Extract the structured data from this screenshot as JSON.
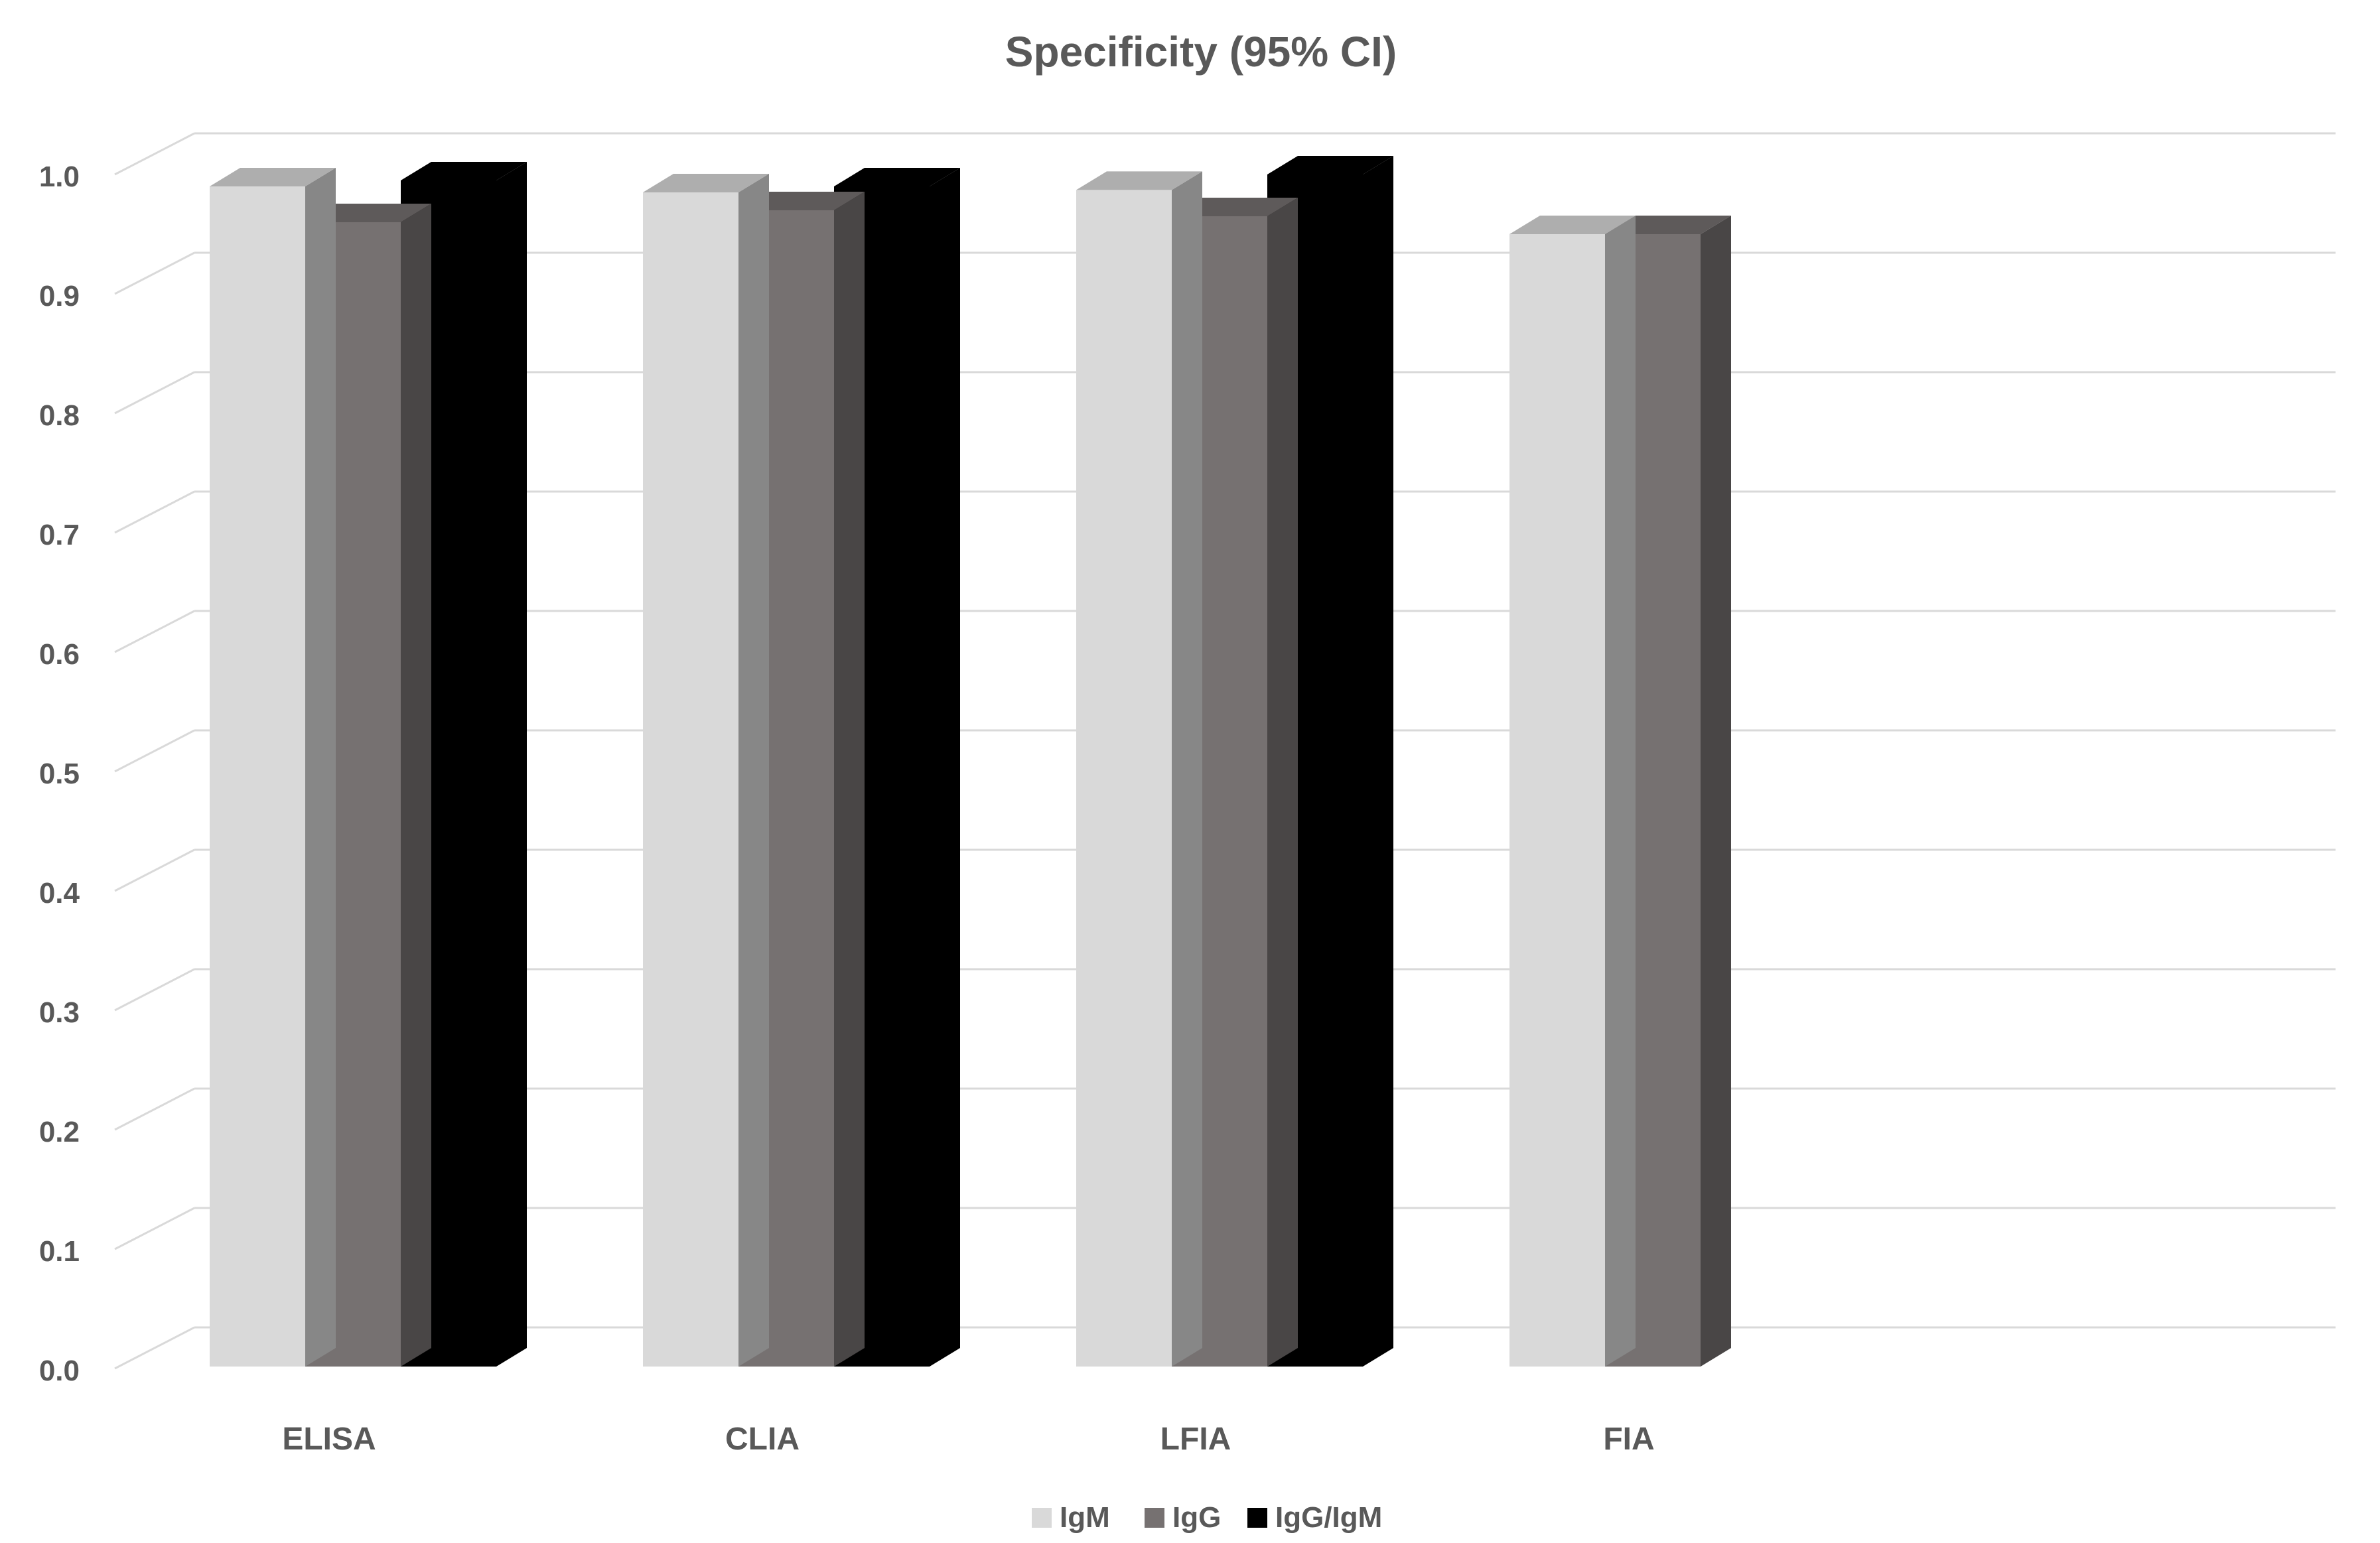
{
  "chart_data": {
    "type": "bar",
    "title": "Specificity (95% CI)",
    "xlabel": "",
    "ylabel": "",
    "ylim": [
      0,
      1.0
    ],
    "yticks": [
      "0.0",
      "0.1",
      "0.2",
      "0.3",
      "0.4",
      "0.5",
      "0.6",
      "0.7",
      "0.8",
      "0.9",
      "1.0"
    ],
    "grid": true,
    "legend_position": "bottom",
    "three_d": true,
    "categories": [
      "ELISA",
      "CLIA",
      "LFIA",
      "FIA"
    ],
    "series": [
      {
        "name": "IgM",
        "color": "#d9d9d9",
        "values": [
          0.99,
          0.985,
          0.987,
          0.95
        ]
      },
      {
        "name": "IgG",
        "color": "#767171",
        "values": [
          0.96,
          0.97,
          0.965,
          0.95
        ]
      },
      {
        "name": "IgG/IgM",
        "color": "#000000",
        "values": [
          0.995,
          0.99,
          1.0,
          null
        ]
      }
    ]
  }
}
